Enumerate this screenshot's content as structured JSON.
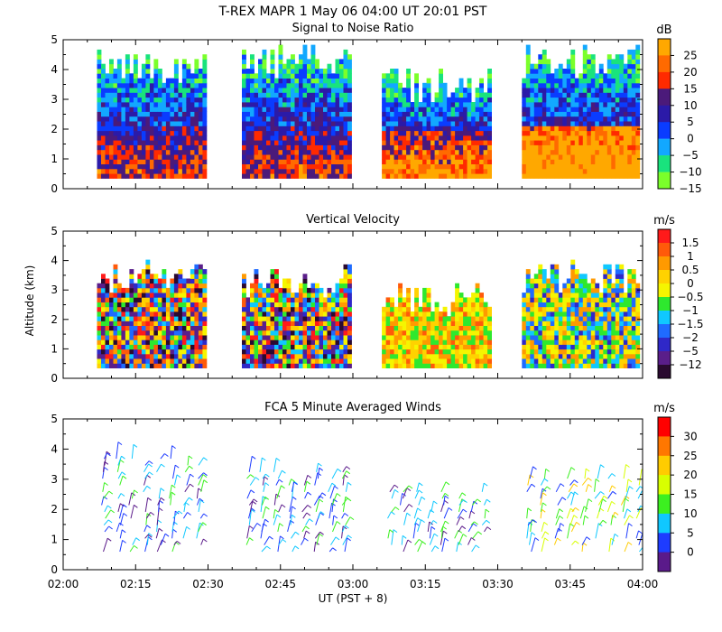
{
  "title": "T-REX   MAPR   1 May 06   04:00 UT   20:01   PST",
  "x_axis": {
    "label": "UT  (PST + 8)",
    "ticks": [
      "02:00",
      "02:15",
      "02:30",
      "02:45",
      "03:00",
      "03:15",
      "03:30",
      "03:45",
      "04:00"
    ],
    "range_minutes": [
      0,
      120
    ]
  },
  "y_axis": {
    "label": "Altitude (km)",
    "range": [
      0,
      5
    ],
    "ticks": [
      "0",
      "1",
      "2",
      "3",
      "4",
      "5"
    ]
  },
  "chart_data": [
    {
      "type": "heatmap",
      "title": "Signal to Noise Ratio",
      "unit": "dB",
      "colorbar_labels": [
        "25",
        "20",
        "15",
        "10",
        "5",
        "0",
        "−5",
        "−10",
        "−15"
      ],
      "colorbar_colors": [
        "#ffa800",
        "#ff6a00",
        "#ff2a00",
        "#4b1a7a",
        "#2b1aa8",
        "#0a3cff",
        "#12a8ff",
        "#19e37d",
        "#7bff2b"
      ],
      "segments": [
        {
          "start_min": 7,
          "end_min": 29,
          "top_km": 4.7
        },
        {
          "start_min": 37,
          "end_min": 59,
          "top_km": 4.8
        },
        {
          "start_min": 66,
          "end_min": 88,
          "top_km": 4.0
        },
        {
          "start_min": 95,
          "end_min": 119,
          "top_km": 4.8
        }
      ]
    },
    {
      "type": "heatmap",
      "title": "Vertical Velocity",
      "unit": "m/s",
      "colorbar_labels": [
        "1.5",
        "1",
        "0.5",
        "0",
        "−0.5",
        "−1",
        "−1.5",
        "−2",
        "−5",
        "−12"
      ],
      "colorbar_colors": [
        "#ff1a1a",
        "#ff5a0a",
        "#ff9a00",
        "#ffd200",
        "#f5f500",
        "#2ee82e",
        "#10c8ff",
        "#1f6bff",
        "#2f28c8",
        "#5a1e8a",
        "#2a0a30"
      ],
      "segments": [
        {
          "start_min": 7,
          "end_min": 29,
          "top_km": 4.1
        },
        {
          "start_min": 37,
          "end_min": 59,
          "top_km": 3.9
        },
        {
          "start_min": 66,
          "end_min": 88,
          "top_km": 3.2
        },
        {
          "start_min": 95,
          "end_min": 119,
          "top_km": 4.0
        }
      ]
    },
    {
      "type": "scatter",
      "title": "FCA 5 Minute Averaged Winds",
      "unit": "m/s",
      "colorbar_labels": [
        "30",
        "25",
        "20",
        "15",
        "10",
        "5",
        "0"
      ],
      "colorbar_colors": [
        "#ff0000",
        "#ff7700",
        "#ffcc00",
        "#d8ff00",
        "#3cf020",
        "#10c8ff",
        "#1e3cff",
        "#5a1a8a"
      ],
      "segments": [
        {
          "start_min": 7,
          "end_min": 29,
          "top_km": 3.8
        },
        {
          "start_min": 37,
          "end_min": 59,
          "top_km": 3.4
        },
        {
          "start_min": 66,
          "end_min": 88,
          "top_km": 2.8
        },
        {
          "start_min": 95,
          "end_min": 119,
          "top_km": 3.2
        }
      ]
    }
  ]
}
